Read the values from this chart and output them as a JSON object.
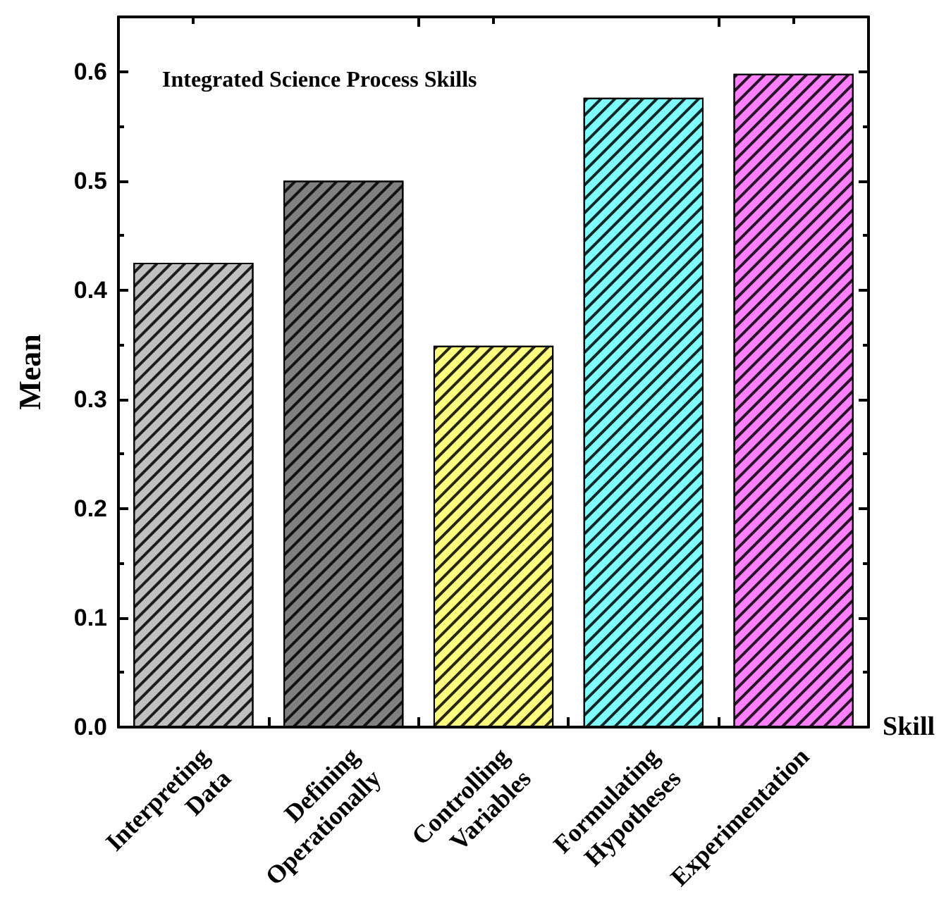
{
  "chart_data": {
    "type": "bar",
    "title": "Integrated Science Process Skills",
    "xlabel": "Skill",
    "ylabel": "Mean",
    "categories": [
      "Interpreting\nData",
      "Defining\nOperationally",
      "Controlling\nVariables",
      "Formulating\nHypotheses",
      "Experimentation"
    ],
    "values": [
      0.425,
      0.5,
      0.349,
      0.576,
      0.598
    ],
    "colors": [
      "#c0c0c0",
      "#808080",
      "#ffff80",
      "#80ffff",
      "#ff80ff"
    ],
    "ylim": [
      0,
      0.65
    ],
    "yticks": [
      {
        "value": 0,
        "label": "0.0"
      },
      {
        "value": 0.1,
        "label": "0.1"
      },
      {
        "value": 0.2,
        "label": "0.2"
      },
      {
        "value": 0.3,
        "label": "0.3"
      },
      {
        "value": 0.4,
        "label": "0.4"
      },
      {
        "value": 0.5,
        "label": "0.5"
      },
      {
        "value": 0.6,
        "label": "0.6"
      }
    ],
    "grid": false
  }
}
